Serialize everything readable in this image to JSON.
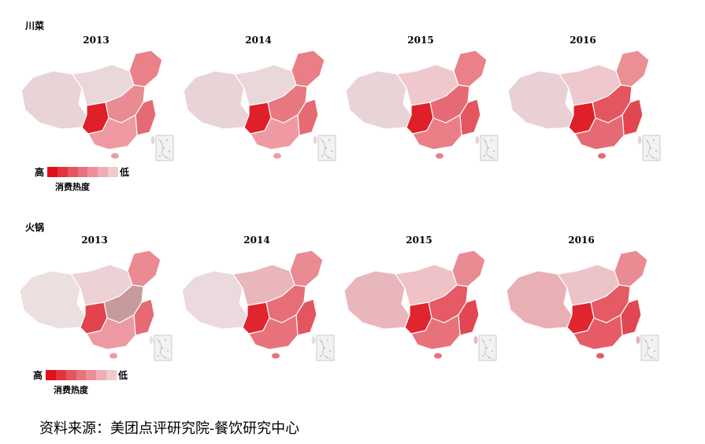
{
  "sections": [
    {
      "title": "川菜",
      "panels": [
        {
          "year": "2013",
          "west": "#e8d4d7",
          "north": "#ead7da",
          "central": "#ea8a92",
          "sichuan": "#e02028",
          "east": "#e66a73",
          "south": "#ef9aa2",
          "northeast": "#ea8088"
        },
        {
          "year": "2014",
          "west": "#e8d4d7",
          "north": "#ead7da",
          "central": "#e87880",
          "sichuan": "#e02028",
          "east": "#e66a73",
          "south": "#ef9aa2",
          "northeast": "#ea7d86"
        },
        {
          "year": "2015",
          "west": "#e8d4d7",
          "north": "#eec8cc",
          "central": "#e66a73",
          "sichuan": "#e02028",
          "east": "#e4555f",
          "south": "#ea7e87",
          "northeast": "#ea8088"
        },
        {
          "year": "2016",
          "west": "#e8d0d4",
          "north": "#eec8cc",
          "central": "#e4555f",
          "sichuan": "#e02028",
          "east": "#e24650",
          "south": "#e66a73",
          "northeast": "#eb8f97"
        }
      ]
    },
    {
      "title": "火锅",
      "panels": [
        {
          "year": "2013",
          "west": "#ecdfe0",
          "north": "#ecd2d5",
          "central": "#c79b9d",
          "sichuan": "#e3434d",
          "east": "#e66a73",
          "south": "#ec9aa1",
          "northeast": "#ea8a92"
        },
        {
          "year": "2014",
          "west": "#eadadd",
          "north": "#e8b6bb",
          "central": "#e76e77",
          "sichuan": "#e0252e",
          "east": "#e4555f",
          "south": "#e8727b",
          "northeast": "#ea8a92"
        },
        {
          "year": "2015",
          "west": "#e8b6bb",
          "north": "#eec2c6",
          "central": "#e55a64",
          "sichuan": "#e0252e",
          "east": "#e24650",
          "south": "#e8727b",
          "northeast": "#ea8a92"
        },
        {
          "year": "2016",
          "west": "#e8b0b5",
          "north": "#ecc4c8",
          "central": "#e55a64",
          "sichuan": "#e0252e",
          "east": "#e24650",
          "south": "#e55c66",
          "northeast": "#ea8a92"
        }
      ]
    }
  ],
  "legend": {
    "high": "高",
    "low": "低",
    "caption": "消费热度",
    "colors": [
      "#e0101a",
      "#e3343d",
      "#e55560",
      "#e8737c",
      "#eb9099",
      "#eeaeb3",
      "#f0cacd"
    ]
  },
  "source": "资料来源：美团点评研究院-餐饮研究中心"
}
